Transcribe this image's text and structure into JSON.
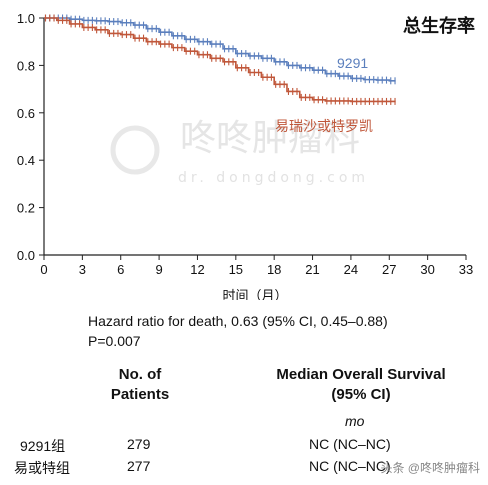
{
  "chart_data": {
    "type": "line",
    "title": "总生存率",
    "xlabel": "时间（月）",
    "ylabel": "",
    "xlim": [
      0,
      33
    ],
    "ylim": [
      0,
      1.0
    ],
    "x_ticks": [
      0,
      3,
      6,
      9,
      12,
      15,
      18,
      21,
      24,
      27,
      30,
      33
    ],
    "y_ticks": [
      0.0,
      0.2,
      0.4,
      0.6,
      0.8,
      1.0
    ],
    "y_tick_labels": [
      "0.0",
      "0.2",
      "0.4",
      "0.6",
      "0.8",
      "1.0"
    ],
    "grid": false,
    "series": [
      {
        "name": "9291",
        "color": "#5b7fbd",
        "x": [
          0,
          1,
          2,
          3,
          4,
          5,
          6,
          7,
          8,
          9,
          10,
          11,
          12,
          13,
          14,
          15,
          16,
          17,
          18,
          19,
          20,
          21,
          22,
          23,
          24,
          25,
          26,
          27,
          27.5
        ],
        "y": [
          1.0,
          1.0,
          0.995,
          0.99,
          0.988,
          0.985,
          0.98,
          0.97,
          0.955,
          0.94,
          0.925,
          0.91,
          0.9,
          0.89,
          0.87,
          0.85,
          0.84,
          0.83,
          0.815,
          0.8,
          0.79,
          0.78,
          0.765,
          0.755,
          0.745,
          0.74,
          0.738,
          0.735,
          0.735
        ]
      },
      {
        "name": "易瑞沙或特罗凯",
        "color": "#c0573a",
        "x": [
          0,
          1,
          2,
          3,
          4,
          5,
          6,
          7,
          8,
          9,
          10,
          11,
          12,
          13,
          14,
          15,
          16,
          17,
          18,
          19,
          20,
          21,
          22,
          23,
          24,
          25,
          26,
          27,
          27.5
        ],
        "y": [
          1.0,
          0.99,
          0.975,
          0.96,
          0.95,
          0.935,
          0.93,
          0.915,
          0.9,
          0.89,
          0.875,
          0.86,
          0.845,
          0.83,
          0.815,
          0.79,
          0.77,
          0.75,
          0.72,
          0.69,
          0.665,
          0.655,
          0.65,
          0.65,
          0.648,
          0.648,
          0.648,
          0.648,
          0.648
        ]
      }
    ],
    "annotations": [
      "9291",
      "易瑞沙或特罗凯"
    ]
  },
  "stats": {
    "hazard": "Hazard ratio for death, 0.63 (95% CI, 0.45–0.88)",
    "p_value": "P=0.007"
  },
  "table": {
    "col1_header_line1": "No. of",
    "col1_header_line2": "Patients",
    "col2_header_line1": "Median Overall Survival",
    "col2_header_line2": "(95% CI)",
    "unit": "mo",
    "rows": [
      {
        "group": "9291组",
        "n": "279",
        "median": "NC (NC–NC)"
      },
      {
        "group": "易或特组",
        "n": "277",
        "median": "NC (NC–NC)"
      }
    ]
  },
  "watermark": {
    "brand": "咚咚肿瘤科",
    "url": "dr.  dongdong.com",
    "footer": "头条 @咚咚肿瘤科"
  }
}
